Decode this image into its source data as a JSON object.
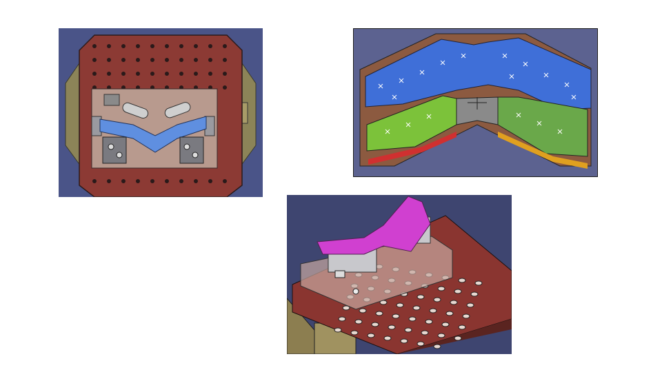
{
  "slide": {
    "background": "#ffffff",
    "images": [
      {
        "id": "fixture-top-view",
        "colors": {
          "backdrop": "#4a5488",
          "baseplate": "#8c3a34",
          "fixture_plate": "#b89a8e",
          "workpiece": "#5f8fe0",
          "side_blocks": "#8c8458"
        }
      },
      {
        "id": "workpiece-surface-analysis",
        "colors": {
          "backdrop": "#5c6290",
          "upper_region": "#3f6fd8",
          "left_region": "#7cc23a",
          "right_region": "#6aa84a",
          "body": "#8c5a40",
          "center": "#8a8a8a",
          "red_strip": "#d03030",
          "orange_strip": "#e0a020"
        }
      },
      {
        "id": "fixture-isometric-view",
        "colors": {
          "backdrop": "#3e4570",
          "baseplate": "#8a3530",
          "transparent_plate": "#c8a8a0",
          "workpiece": "#d040d0",
          "clamps": "#c8c8cc",
          "base": "#8c7e50"
        }
      }
    ]
  }
}
